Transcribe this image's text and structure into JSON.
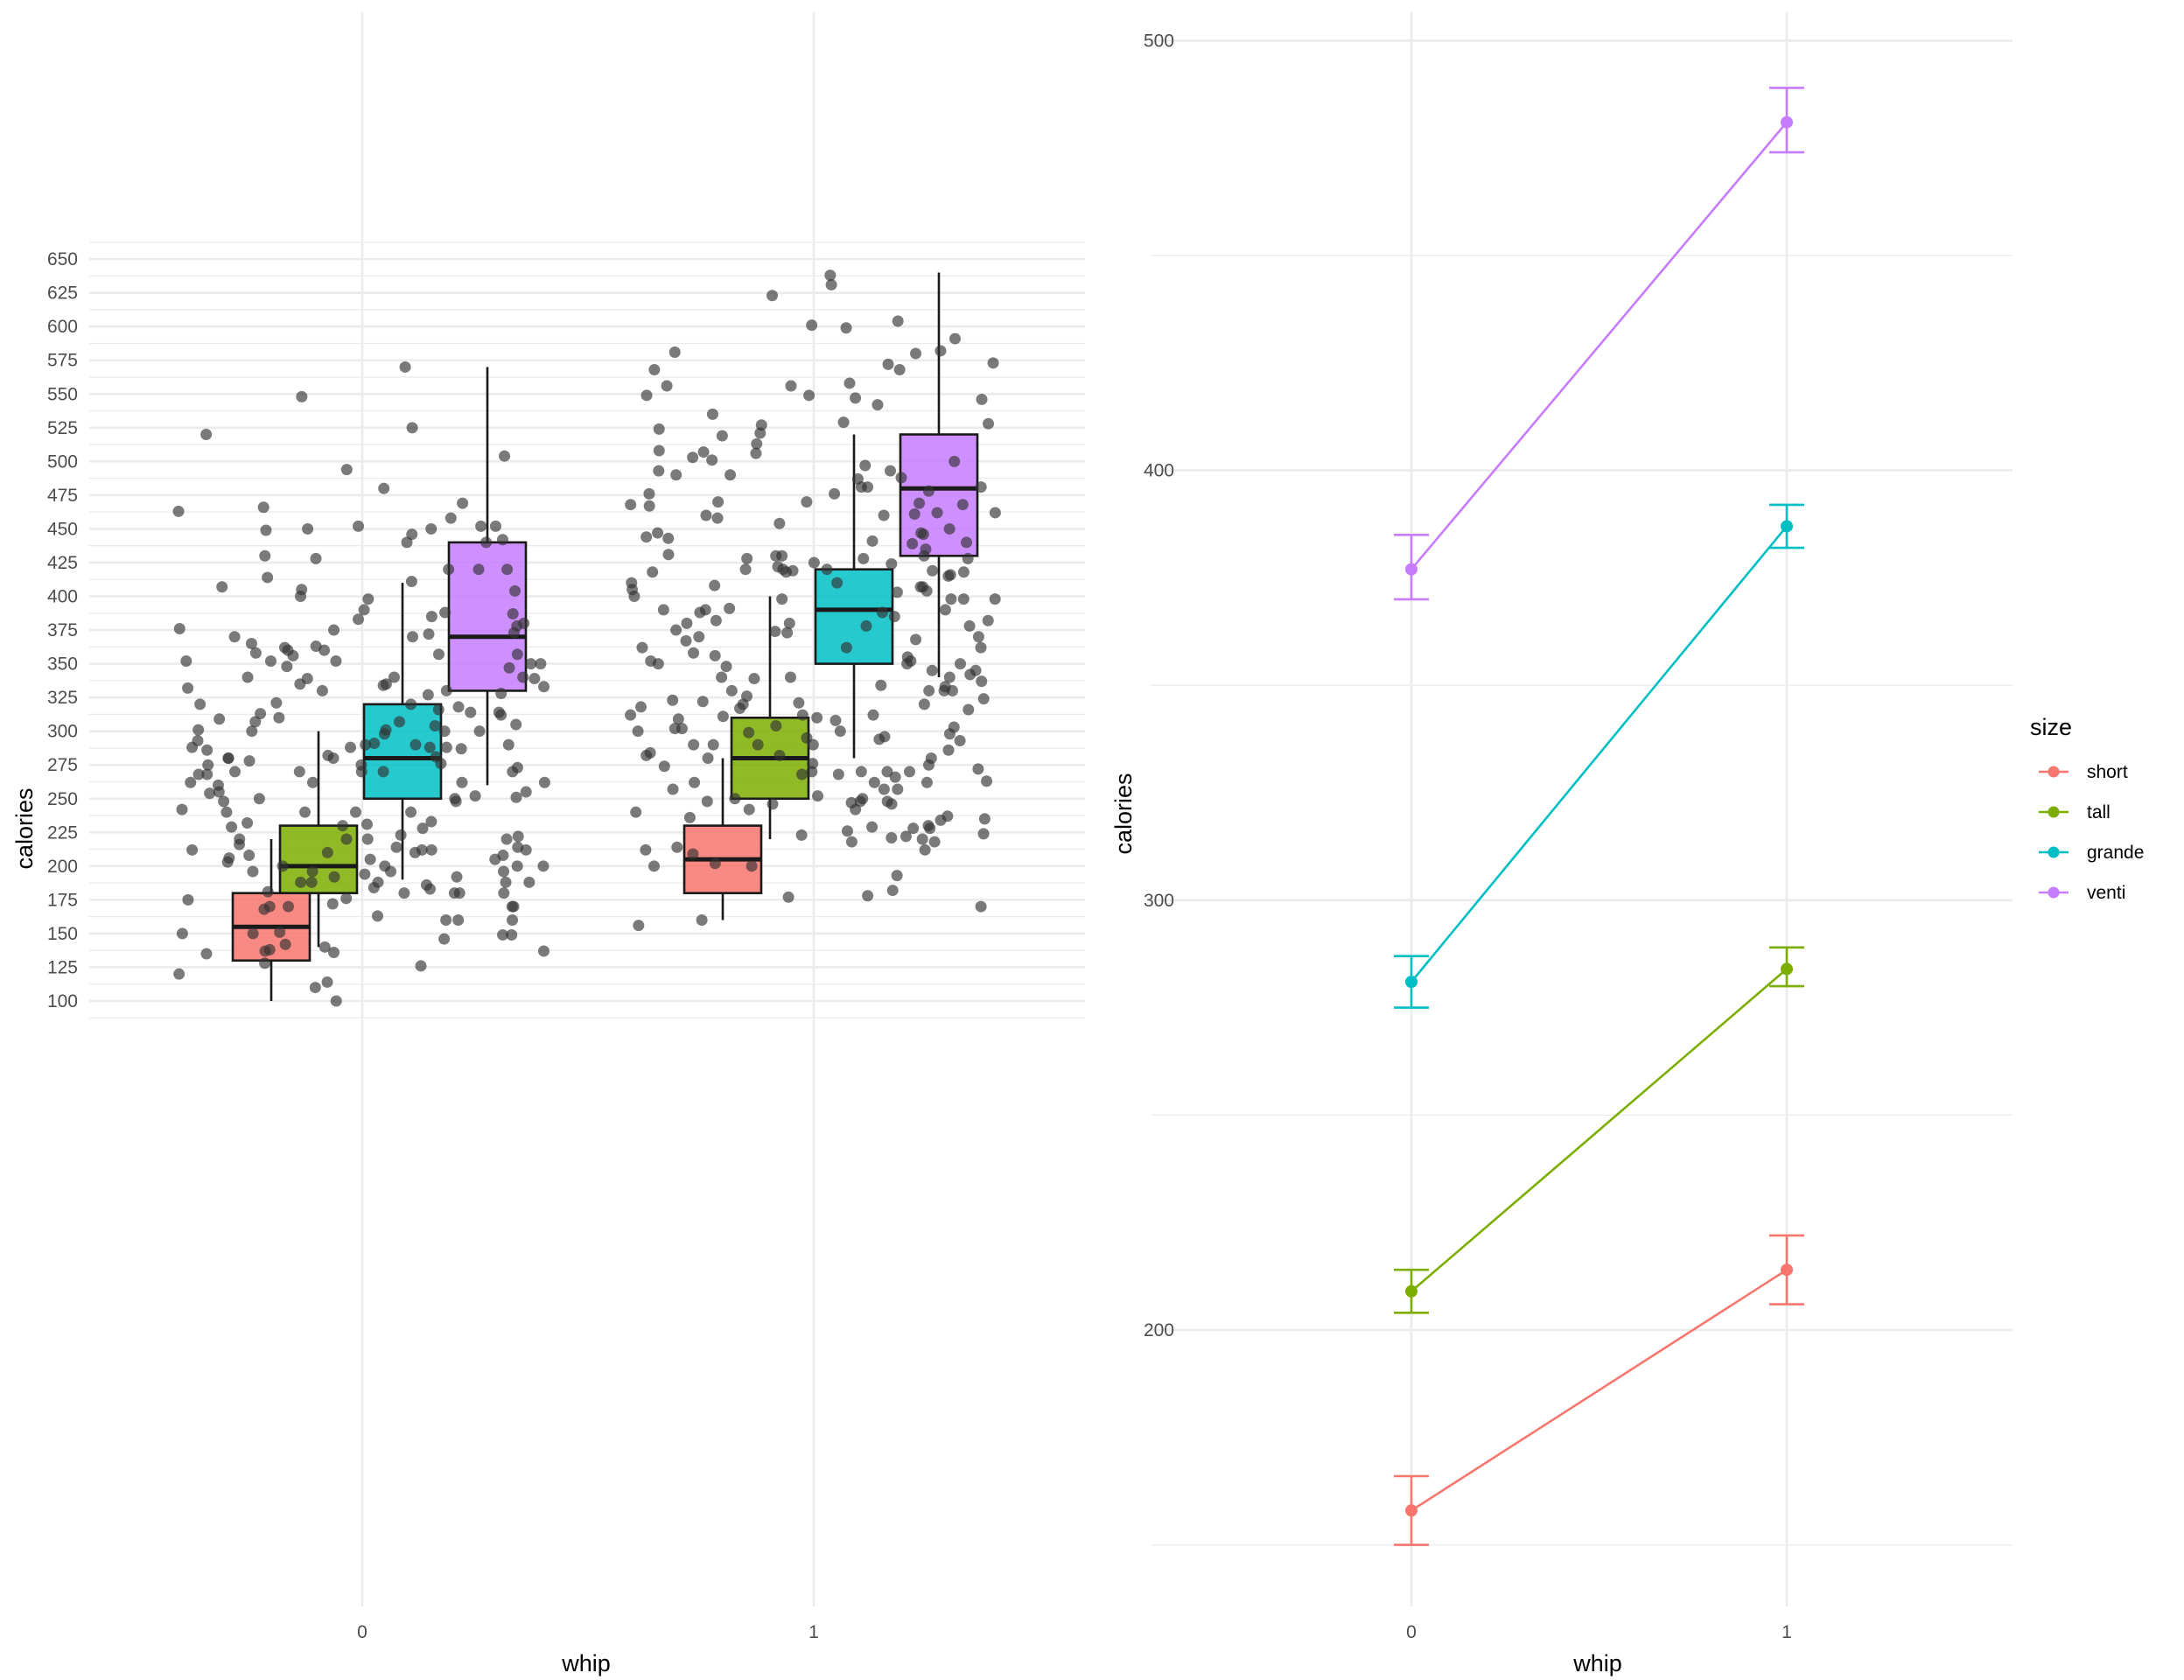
{
  "colors": {
    "short": "#F8766D",
    "tall": "#7CAE00",
    "grande": "#00BFC4",
    "venti": "#C77CFF",
    "points": "#333333",
    "grid": "#EBEBEB"
  },
  "chart_data": [
    {
      "type": "box",
      "xlabel": "whip",
      "ylabel": "calories",
      "ylim": [
        73,
        673
      ],
      "y_ticks": [
        100,
        125,
        150,
        175,
        200,
        225,
        250,
        275,
        300,
        325,
        350,
        375,
        400,
        425,
        450,
        475,
        500,
        525,
        550,
        575,
        600,
        625,
        650
      ],
      "x_categories": [
        "0",
        "1"
      ],
      "groups": [
        "short",
        "tall",
        "grande",
        "venti"
      ],
      "boxes": [
        {
          "whip": "0",
          "size": "short",
          "min": 100,
          "q1": 130,
          "median": 155,
          "q3": 180,
          "max": 220
        },
        {
          "whip": "0",
          "size": "tall",
          "min": 140,
          "q1": 180,
          "median": 200,
          "q3": 230,
          "max": 300
        },
        {
          "whip": "0",
          "size": "grande",
          "min": 190,
          "q1": 250,
          "median": 280,
          "q3": 320,
          "max": 410
        },
        {
          "whip": "0",
          "size": "venti",
          "min": 260,
          "q1": 330,
          "median": 370,
          "q3": 440,
          "max": 570
        },
        {
          "whip": "1",
          "size": "short",
          "min": 160,
          "q1": 180,
          "median": 205,
          "q3": 230,
          "max": 280
        },
        {
          "whip": "1",
          "size": "tall",
          "min": 220,
          "q1": 250,
          "median": 280,
          "q3": 310,
          "max": 400
        },
        {
          "whip": "1",
          "size": "grande",
          "min": 280,
          "q1": 350,
          "median": 390,
          "q3": 420,
          "max": 520
        },
        {
          "whip": "1",
          "size": "venti",
          "min": 340,
          "q1": 430,
          "median": 480,
          "q3": 520,
          "max": 640
        }
      ],
      "jitter_points": {
        "whip0": [
          463,
          378,
          362,
          358,
          288,
          291,
          270,
          250,
          248,
          188,
          183,
          525,
          420,
          414,
          363,
          316,
          304,
          301,
          288,
          288,
          273,
          252,
          248,
          231,
          214,
          212,
          210,
          196,
          170,
          160,
          110,
          548,
          440,
          400,
          370,
          360,
          352,
          348,
          340,
          334,
          330,
          328,
          320,
          310,
          298,
          290,
          280,
          278,
          270,
          268,
          262,
          240,
          228,
          222,
          220,
          216,
          210,
          200,
          196,
          192,
          188,
          184,
          180,
          168,
          149,
          494,
          452,
          446,
          411,
          398,
          390,
          385,
          380,
          360,
          357,
          352,
          340,
          339,
          335,
          330,
          314,
          312,
          309,
          300,
          286,
          282,
          270,
          268,
          262,
          250,
          240,
          229,
          220,
          214,
          206,
          200,
          196,
          188,
          180,
          170,
          160,
          151,
          150,
          138,
          135,
          120,
          570,
          466,
          458,
          452,
          450,
          449,
          442,
          430,
          428,
          420,
          407,
          383,
          376,
          373,
          370,
          357,
          352,
          347,
          340,
          339,
          335,
          327,
          321,
          313,
          307,
          301,
          293,
          287,
          281,
          276,
          270,
          262,
          255,
          251,
          240,
          233,
          220,
          212,
          208,
          205,
          200,
          188,
          180,
          172,
          170,
          160,
          149,
          140,
          128,
          114,
          504,
          480,
          450,
          440,
          420,
          405,
          388,
          375,
          365,
          356,
          350,
          333,
          320,
          314,
          305,
          300,
          290,
          280,
          275,
          270,
          262,
          255,
          240,
          232,
          230,
          220,
          212,
          205,
          200,
          194,
          192,
          188,
          180,
          175,
          170,
          163,
          150,
          146,
          142,
          137,
          126,
          100,
          520,
          469,
          452,
          404,
          387,
          372,
          350,
          332,
          318,
          307,
          300,
          290,
          288,
          280,
          275,
          260,
          254,
          242,
          223,
          212,
          208,
          203,
          196,
          186,
          181,
          176,
          137,
          136
        ],
        "whip1": [
          542,
          461,
          430,
          420,
          418,
          408,
          404,
          382,
          367,
          342,
          310,
          302,
          248,
          247,
          503,
          493,
          490,
          481,
          476,
          470,
          462,
          447,
          430,
          420,
          410,
          405,
          398,
          390,
          382,
          378,
          368,
          352,
          340,
          330,
          324,
          320,
          312,
          300,
          290,
          282,
          276,
          270,
          268,
          266,
          262,
          250,
          604,
          591,
          582,
          573,
          556,
          549,
          546,
          528,
          527,
          508,
          506,
          500,
          493,
          488,
          481,
          469,
          460,
          458,
          446,
          443,
          440,
          430,
          428,
          424,
          420,
          419,
          416,
          410,
          398,
          391,
          388,
          380,
          374,
          370,
          362,
          356,
          350,
          345,
          339,
          334,
          330,
          323,
          320,
          316,
          312,
          309,
          304,
          300,
          296,
          293,
          290,
          280,
          272,
          270,
          262,
          257,
          248,
          240,
          230,
          226,
          222,
          214,
          200,
          182,
          170,
          631,
          599,
          580,
          572,
          568,
          558,
          556,
          549,
          547,
          535,
          529,
          519,
          501,
          487,
          481,
          478,
          470,
          468,
          467,
          460,
          454,
          447,
          441,
          435,
          431,
          428,
          425,
          419,
          418,
          415,
          407,
          403,
          398,
          390,
          388,
          385,
          380,
          375,
          370,
          362,
          352,
          350,
          348,
          345,
          340,
          337,
          330,
          322,
          318,
          312,
          308,
          302,
          299,
          295,
          290,
          284,
          282,
          274,
          270,
          268,
          262,
          257,
          252,
          248,
          246,
          242,
          235,
          228,
          224,
          221,
          218,
          212,
          209,
          200,
          193,
          178,
          177,
          638,
          623,
          601,
          581,
          568,
          524,
          521,
          513,
          507,
          497,
          490,
          476,
          468,
          462,
          450,
          444,
          439,
          428,
          422,
          418,
          407,
          400,
          398,
          390,
          378,
          373,
          362,
          358,
          355,
          350,
          340,
          333,
          330,
          326,
          321,
          317,
          311,
          303,
          298,
          294,
          290,
          286,
          280,
          275,
          270,
          263,
          257,
          250,
          246,
          242,
          237,
          236,
          234,
          229,
          228,
          223,
          220,
          218,
          212,
          202,
          160,
          156
        ]
      }
    },
    {
      "type": "line",
      "xlabel": "whip",
      "ylabel": "calories",
      "ylim": [
        145,
        504
      ],
      "y_ticks": [
        200,
        300,
        400,
        500
      ],
      "x": [
        "0",
        "1"
      ],
      "legend_title": "size",
      "legend_position": "right",
      "series": [
        {
          "name": "short",
          "values": [
            158,
            214
          ],
          "err_lo": [
            150,
            206
          ],
          "err_hi": [
            166,
            222
          ]
        },
        {
          "name": "tall",
          "values": [
            209,
            284
          ],
          "err_lo": [
            204,
            280
          ],
          "err_hi": [
            214,
            289
          ]
        },
        {
          "name": "grande",
          "values": [
            281,
            387
          ],
          "err_lo": [
            275,
            382
          ],
          "err_hi": [
            287,
            392
          ]
        },
        {
          "name": "venti",
          "values": [
            377,
            481
          ],
          "err_lo": [
            370,
            474
          ],
          "err_hi": [
            385,
            489
          ]
        }
      ]
    }
  ]
}
